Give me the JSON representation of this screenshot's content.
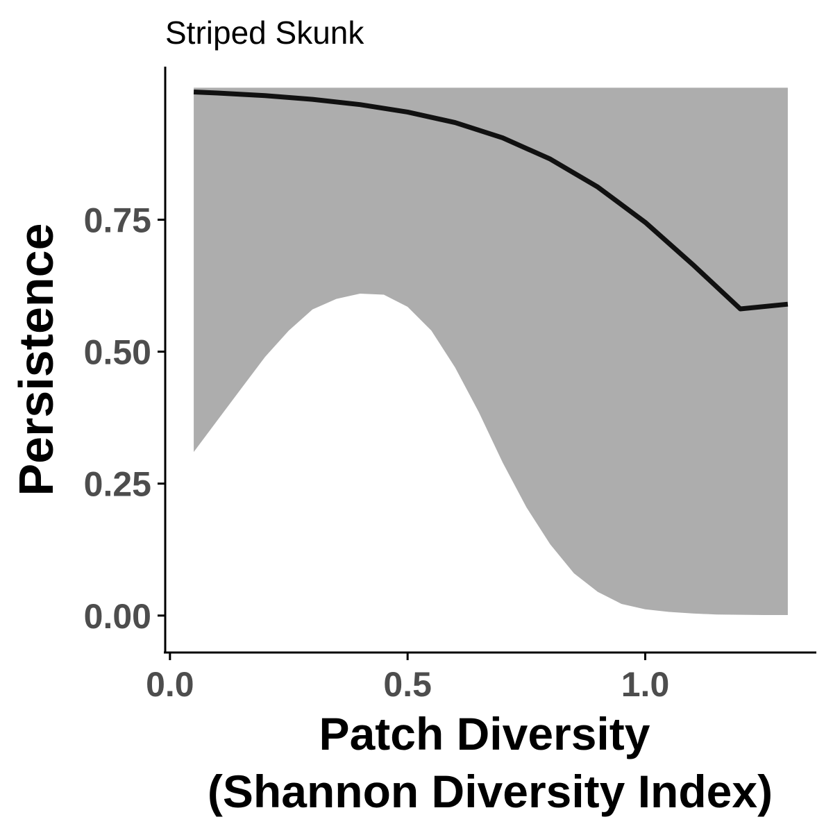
{
  "chart_data": {
    "type": "line",
    "title": "Striped Skunk",
    "xlabel_lines": [
      "Patch Diversity",
      "(Shannon Diversity Index)"
    ],
    "ylabel": "Persistence",
    "xlim": [
      -0.01,
      1.36
    ],
    "ylim": [
      -0.07,
      1.04
    ],
    "x_ticks": [
      {
        "value": 0.0,
        "label": "0.0"
      },
      {
        "value": 0.5,
        "label": "0.5"
      },
      {
        "value": 1.0,
        "label": "1.0"
      }
    ],
    "y_ticks": [
      {
        "value": 0.0,
        "label": "0.00"
      },
      {
        "value": 0.25,
        "label": "0.25"
      },
      {
        "value": 0.5,
        "label": "0.50"
      },
      {
        "value": 0.75,
        "label": "0.75"
      }
    ],
    "grid": false,
    "series": [
      {
        "x": [
          0.05,
          0.1,
          0.2,
          0.3,
          0.4,
          0.5,
          0.6,
          0.7,
          0.8,
          0.9,
          1.0,
          1.1,
          1.2,
          1.3
        ],
        "y": [
          0.992,
          0.99,
          0.985,
          0.978,
          0.968,
          0.954,
          0.934,
          0.905,
          0.865,
          0.812,
          0.745,
          0.665,
          0.581,
          0.59
        ],
        "line_color": "#111111"
      }
    ],
    "ribbon": {
      "fill_color": "#adadad",
      "x": [
        0.05,
        0.1,
        0.15,
        0.2,
        0.25,
        0.3,
        0.35,
        0.4,
        0.45,
        0.5,
        0.55,
        0.6,
        0.65,
        0.7,
        0.75,
        0.8,
        0.85,
        0.9,
        0.95,
        1.0,
        1.05,
        1.1,
        1.15,
        1.2,
        1.25,
        1.3
      ],
      "lower": [
        0.31,
        0.37,
        0.43,
        0.49,
        0.54,
        0.58,
        0.6,
        0.61,
        0.608,
        0.585,
        0.54,
        0.47,
        0.385,
        0.29,
        0.205,
        0.135,
        0.08,
        0.045,
        0.022,
        0.012,
        0.007,
        0.004,
        0.002,
        0.0015,
        0.001,
        0.001
      ],
      "upper": [
        1.0,
        1.0,
        1.0,
        1.0,
        1.0,
        1.0,
        1.0,
        1.0,
        1.0,
        1.0,
        1.0,
        1.0,
        1.0,
        1.0,
        1.0,
        1.0,
        1.0,
        1.0,
        1.0,
        1.0,
        1.0,
        1.0,
        1.0,
        1.0,
        1.0,
        1.0
      ]
    }
  }
}
